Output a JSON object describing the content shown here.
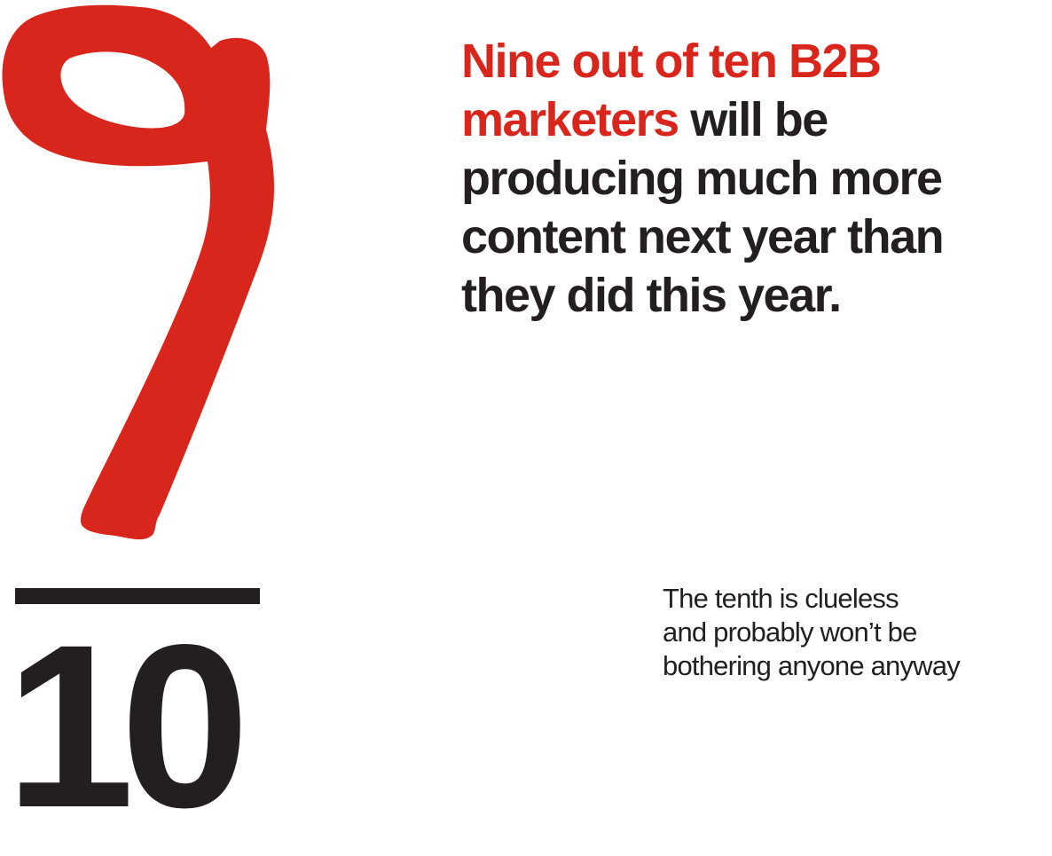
{
  "colors": {
    "accent": "#d9261c",
    "ink": "#231f20",
    "background": "#ffffff"
  },
  "fraction": {
    "numeral": "9",
    "numeral_style": "hand-drawn red brush stroke",
    "denominator": "10"
  },
  "headline": {
    "lines": [
      {
        "highlight": "Nine out of ten B2B",
        "rest": ""
      },
      {
        "highlight": "marketers",
        "rest": " will be"
      },
      {
        "highlight": "",
        "rest": "producing much more"
      },
      {
        "highlight": "",
        "rest": "content next year than"
      },
      {
        "highlight": "",
        "rest": "they did this year."
      }
    ]
  },
  "aside": {
    "lines": [
      "The tenth is clueless",
      "and probably won’t be",
      "bothering anyone anyway"
    ]
  }
}
